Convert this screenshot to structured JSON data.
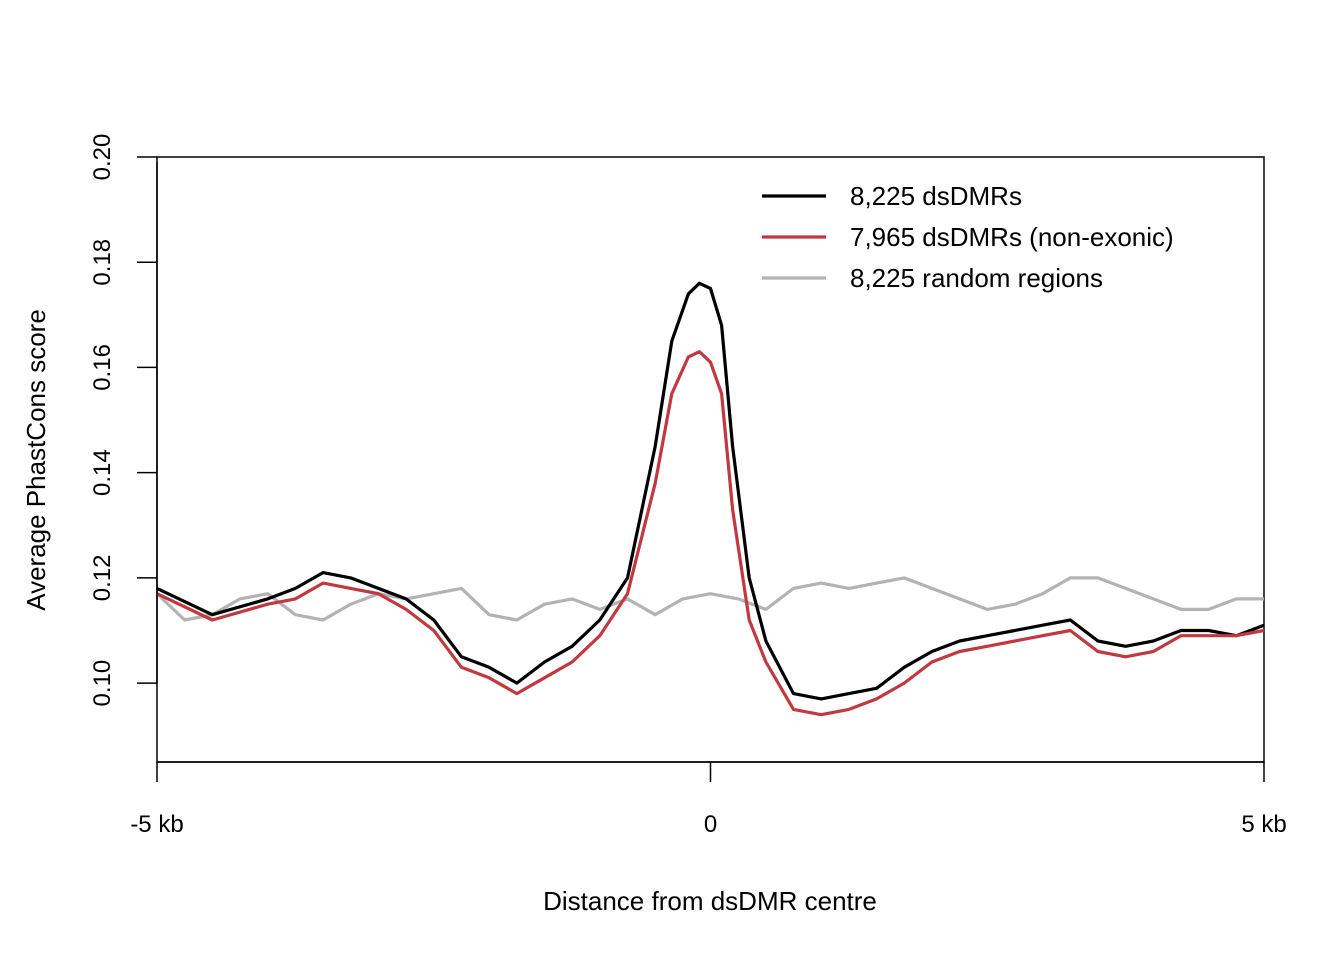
{
  "chart_data": {
    "type": "line",
    "title": "",
    "xlabel": "Distance from dsDMR centre",
    "ylabel": "Average PhastCons score",
    "xlim": [
      -5,
      5
    ],
    "ylim": [
      0.085,
      0.2
    ],
    "x_ticks": [
      -5,
      0,
      5
    ],
    "x_tick_labels": [
      "-5 kb",
      "0",
      "5 kb"
    ],
    "y_ticks": [
      0.1,
      0.12,
      0.14,
      0.16,
      0.18,
      0.2
    ],
    "y_tick_labels": [
      "0.10",
      "0.12",
      "0.14",
      "0.16",
      "0.18",
      "0.20"
    ],
    "grid": false,
    "legend_position": "top-right",
    "series": [
      {
        "name": "8,225 dsDMRs",
        "color": "#000000",
        "x": [
          -5.0,
          -4.5,
          -4.0,
          -3.75,
          -3.5,
          -3.25,
          -3.0,
          -2.75,
          -2.5,
          -2.25,
          -2.0,
          -1.75,
          -1.5,
          -1.25,
          -1.0,
          -0.75,
          -0.5,
          -0.35,
          -0.2,
          -0.1,
          0.0,
          0.1,
          0.2,
          0.35,
          0.5,
          0.75,
          1.0,
          1.25,
          1.5,
          1.75,
          2.0,
          2.25,
          2.5,
          2.75,
          3.0,
          3.25,
          3.5,
          3.75,
          4.0,
          4.25,
          4.5,
          4.75,
          5.0
        ],
        "y": [
          0.118,
          0.113,
          0.116,
          0.118,
          0.121,
          0.12,
          0.118,
          0.116,
          0.112,
          0.105,
          0.103,
          0.1,
          0.104,
          0.107,
          0.112,
          0.12,
          0.145,
          0.165,
          0.174,
          0.176,
          0.175,
          0.168,
          0.145,
          0.12,
          0.108,
          0.098,
          0.097,
          0.098,
          0.099,
          0.103,
          0.106,
          0.108,
          0.109,
          0.11,
          0.111,
          0.112,
          0.108,
          0.107,
          0.108,
          0.11,
          0.11,
          0.109,
          0.111
        ]
      },
      {
        "name": "7,965 dsDMRs (non-exonic)",
        "color": "#c1393f",
        "x": [
          -5.0,
          -4.5,
          -4.0,
          -3.75,
          -3.5,
          -3.25,
          -3.0,
          -2.75,
          -2.5,
          -2.25,
          -2.0,
          -1.75,
          -1.5,
          -1.25,
          -1.0,
          -0.75,
          -0.5,
          -0.35,
          -0.2,
          -0.1,
          0.0,
          0.1,
          0.2,
          0.35,
          0.5,
          0.75,
          1.0,
          1.25,
          1.5,
          1.75,
          2.0,
          2.25,
          2.5,
          2.75,
          3.0,
          3.25,
          3.5,
          3.75,
          4.0,
          4.25,
          4.5,
          4.75,
          5.0
        ],
        "y": [
          0.117,
          0.112,
          0.115,
          0.116,
          0.119,
          0.118,
          0.117,
          0.114,
          0.11,
          0.103,
          0.101,
          0.098,
          0.101,
          0.104,
          0.109,
          0.117,
          0.138,
          0.155,
          0.162,
          0.163,
          0.161,
          0.155,
          0.133,
          0.112,
          0.104,
          0.095,
          0.094,
          0.095,
          0.097,
          0.1,
          0.104,
          0.106,
          0.107,
          0.108,
          0.109,
          0.11,
          0.106,
          0.105,
          0.106,
          0.109,
          0.109,
          0.109,
          0.11
        ]
      },
      {
        "name": "8,225 random regions",
        "color": "#b3b3b3",
        "x": [
          -5.0,
          -4.75,
          -4.5,
          -4.25,
          -4.0,
          -3.75,
          -3.5,
          -3.25,
          -3.0,
          -2.75,
          -2.5,
          -2.25,
          -2.0,
          -1.75,
          -1.5,
          -1.25,
          -1.0,
          -0.75,
          -0.5,
          -0.25,
          0.0,
          0.25,
          0.5,
          0.75,
          1.0,
          1.25,
          1.5,
          1.75,
          2.0,
          2.25,
          2.5,
          2.75,
          3.0,
          3.25,
          3.5,
          3.75,
          4.0,
          4.25,
          4.5,
          4.75,
          5.0
        ],
        "y": [
          0.117,
          0.112,
          0.113,
          0.116,
          0.117,
          0.113,
          0.112,
          0.115,
          0.117,
          0.116,
          0.117,
          0.118,
          0.113,
          0.112,
          0.115,
          0.116,
          0.114,
          0.116,
          0.113,
          0.116,
          0.117,
          0.116,
          0.114,
          0.118,
          0.119,
          0.118,
          0.119,
          0.12,
          0.118,
          0.116,
          0.114,
          0.115,
          0.117,
          0.12,
          0.12,
          0.118,
          0.116,
          0.114,
          0.114,
          0.116,
          0.116
        ]
      }
    ]
  }
}
